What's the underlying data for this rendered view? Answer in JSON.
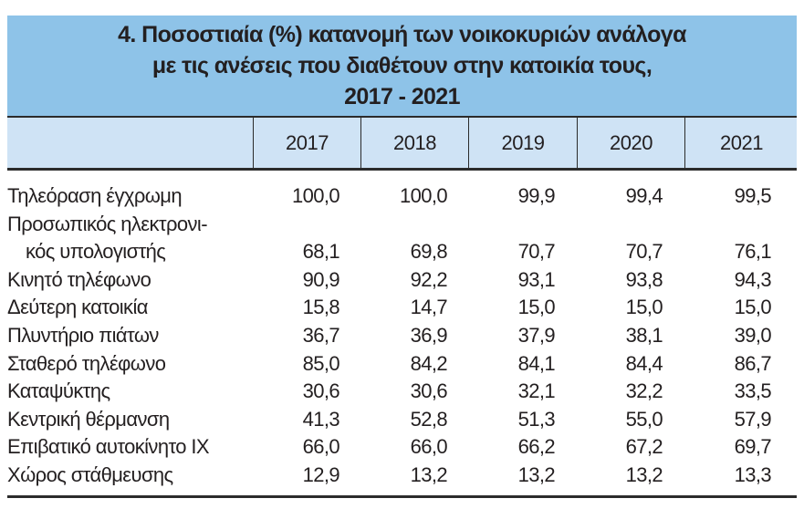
{
  "title": {
    "line1": "4. Ποσοστιαία (%) κατανομή των νοικοκυριών ανάλογα",
    "line2": "με τις ανέσεις που διαθέτουν στην κατοικία τους,",
    "line3": "2017 - 2021"
  },
  "colors": {
    "title_band": "#8ec3e8",
    "header_band": "#cfe3f5"
  },
  "columns": [
    "2017",
    "2018",
    "2019",
    "2020",
    "2021"
  ],
  "rows": [
    {
      "label": "Τηλεόραση έγχρωμη",
      "values": [
        "100,0",
        "100,0",
        "99,9",
        "99,4",
        "99,5"
      ]
    },
    {
      "label": "Προσωπικός ηλεκτρονι-",
      "label2": "κός υπολογιστής",
      "values": [
        "68,1",
        "69,8",
        "70,7",
        "70,7",
        "76,1"
      ]
    },
    {
      "label": "Κινητό τηλέφωνο",
      "values": [
        "90,9",
        "92,2",
        "93,1",
        "93,8",
        "94,3"
      ]
    },
    {
      "label": "Δεύτερη κατοικία",
      "values": [
        "15,8",
        "14,7",
        "15,0",
        "15,0",
        "15,0"
      ]
    },
    {
      "label": "Πλυντήριο πιάτων",
      "values": [
        "36,7",
        "36,9",
        "37,9",
        "38,1",
        "39,0"
      ]
    },
    {
      "label": "Σταθερό τηλέφωνο",
      "values": [
        "85,0",
        "84,2",
        "84,1",
        "84,4",
        "86,7"
      ]
    },
    {
      "label": "Καταψύκτης",
      "values": [
        "30,6",
        "30,6",
        "32,1",
        "32,2",
        "33,5"
      ]
    },
    {
      "label": "Κεντρική θέρμανση",
      "values": [
        "41,3",
        "52,8",
        "51,3",
        "55,0",
        "57,9"
      ]
    },
    {
      "label": "Επιβατικό αυτοκίνητο ΙΧ",
      "values": [
        "66,0",
        "66,0",
        "66,2",
        "67,2",
        "69,7"
      ]
    },
    {
      "label": "Χώρος στάθμευσης",
      "values": [
        "12,9",
        "13,2",
        "13,2",
        "13,2",
        "13,3"
      ]
    }
  ]
}
